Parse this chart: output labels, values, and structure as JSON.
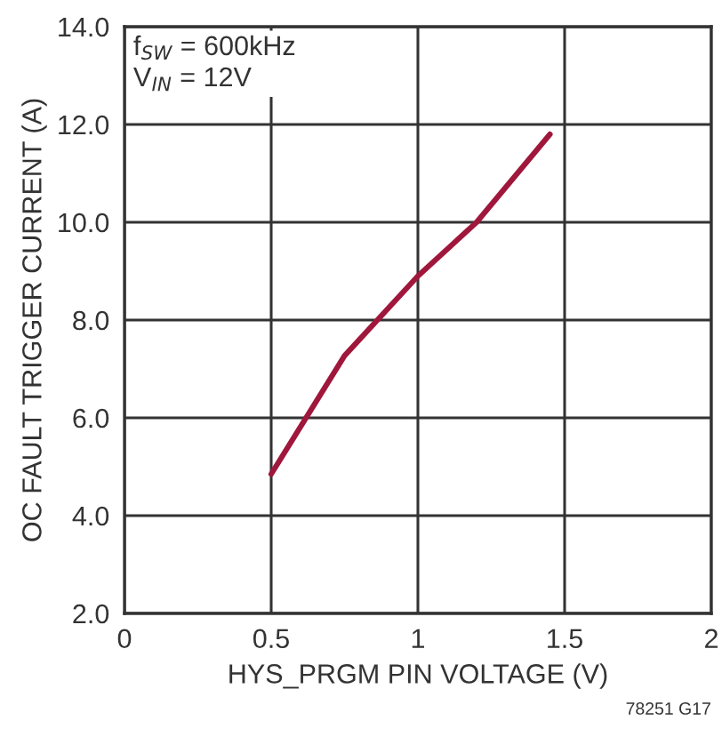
{
  "chart_data": {
    "type": "line",
    "xlabel": "HYS_PRGM PIN VOLTAGE (V)",
    "ylabel": "OC FAULT TRIGGER CURRENT (A)",
    "x": [
      0.5,
      0.75,
      1.0,
      1.2,
      1.45
    ],
    "series": [
      {
        "color": "#a0173c",
        "values": [
          4.85,
          7.27,
          8.9,
          10.0,
          11.8
        ]
      }
    ],
    "xlim": [
      0,
      2
    ],
    "xticks": [
      0,
      0.5,
      1,
      1.5,
      2
    ],
    "ylim": [
      2,
      14
    ],
    "yticks": [
      {
        "value": 2,
        "label": "2.0"
      },
      {
        "value": 4,
        "label": "4.0"
      },
      {
        "value": 6,
        "label": "6.0"
      },
      {
        "value": 8,
        "label": "8.0"
      },
      {
        "value": 10,
        "label": "10.0"
      },
      {
        "value": 12,
        "label": "12.0"
      },
      {
        "value": 14,
        "label": "14.0"
      }
    ],
    "grid": true,
    "legend": false,
    "marker": "none",
    "line_style": "solid",
    "annotations": [
      "f$_{SW}$ = 600kHz\nV$_{IN}$ = 12V",
      "78251 G17"
    ]
  }
}
